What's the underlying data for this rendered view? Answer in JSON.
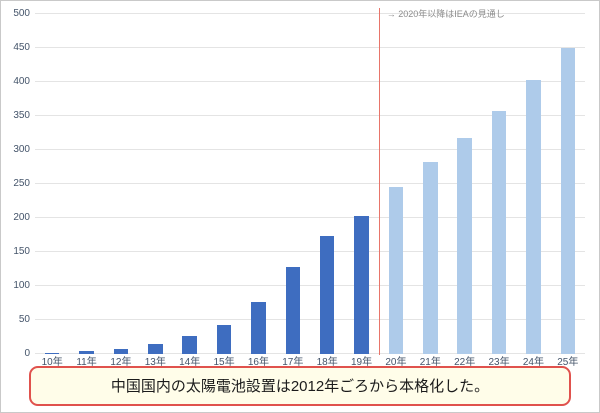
{
  "chart_data": {
    "type": "bar",
    "title": "",
    "xlabel": "",
    "ylabel": "",
    "categories": [
      "10年",
      "11年",
      "12年",
      "13年",
      "14年",
      "15年",
      "16年",
      "17年",
      "18年",
      "19年",
      "20年",
      "21年",
      "22年",
      "23年",
      "24年",
      "25年"
    ],
    "values": [
      2,
      4,
      7,
      15,
      27,
      42,
      76,
      128,
      174,
      203,
      245,
      283,
      318,
      357,
      403,
      450
    ],
    "forecast_start_index": 10,
    "ylim": [
      0,
      500
    ],
    "ytick_step": 50,
    "grid": "horizontal",
    "legend_position": "none",
    "annotation": "→  2020年以降はIEAの見通し",
    "colors": {
      "actual_bar": "#3e6dc0",
      "forecast_bar": "#aecbea",
      "divider_line": "#e8756a",
      "gridline": "#e4e4e4",
      "axis_text": "#44546a",
      "annotation_text": "#8c8c8c"
    }
  },
  "caption": {
    "text": "中国国内の太陽電池設置は2012年ごろから本格化した。",
    "border_color": "#e0524d",
    "background": "#fffde9"
  }
}
